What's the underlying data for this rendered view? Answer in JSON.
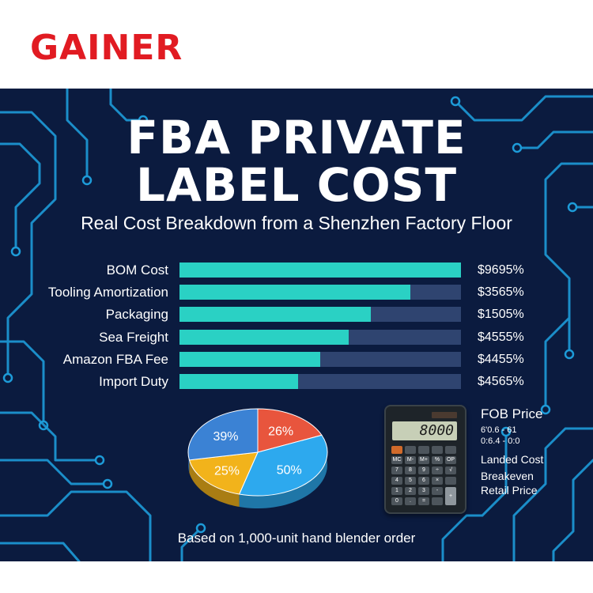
{
  "brand": {
    "logo_text": "GAINER"
  },
  "infographic": {
    "title_line1": "FBA PRIVATE",
    "title_line2": "LABEL COST",
    "subtitle": "Real Cost Breakdown from a Shenzhen Factory Floor",
    "footnote": "Based on 1,000-unit hand blender order"
  },
  "chart_data": [
    {
      "type": "bar",
      "orientation": "horizontal",
      "categories": [
        "BOM Cost",
        "Tooling Amortization",
        "Packaging",
        "Sea Freight",
        "Amazon FBA Fee",
        "Import Duty"
      ],
      "values": [
        100,
        82,
        68,
        60,
        50,
        42
      ],
      "value_labels": [
        "$9695%",
        "$3565%",
        "$1505%",
        "$4555%",
        "$4455%",
        "$4565%"
      ],
      "xlim": [
        0,
        100
      ],
      "colors": {
        "bar": "#2ad1c4",
        "track": "#2f4470"
      }
    },
    {
      "type": "pie",
      "style": "3d",
      "slices": [
        {
          "label": "26%",
          "value": 26,
          "color": "#e8553d"
        },
        {
          "label": "50%",
          "value": 50,
          "color": "#2da9ee"
        },
        {
          "label": "25%",
          "value": 25,
          "color": "#f2b31b"
        },
        {
          "label": "39%",
          "value": 39,
          "color": "#3b82d4"
        }
      ]
    }
  ],
  "calculator": {
    "display": "8000",
    "keys": [
      "",
      "",
      "",
      "",
      "",
      "MC",
      "M-",
      "M+",
      "%",
      "OP",
      "7",
      "8",
      "9",
      "÷",
      "√",
      "4",
      "5",
      "6",
      "×",
      "",
      "1",
      "2",
      "3",
      "-",
      "+",
      "0",
      ".",
      "=",
      ""
    ]
  },
  "info_panel": {
    "fob_label": "FOB Price",
    "fob_line1": "6'0.6 - 61",
    "fob_line2": "0:6.4 - 0:0",
    "landed_cost": "Landed Cost",
    "breakeven": "Breakeven",
    "retail_price": "Retail Price"
  },
  "colors": {
    "brand_red": "#e11b22",
    "panel_navy": "#0b1b3f",
    "circuit": "#1d9bd8"
  }
}
